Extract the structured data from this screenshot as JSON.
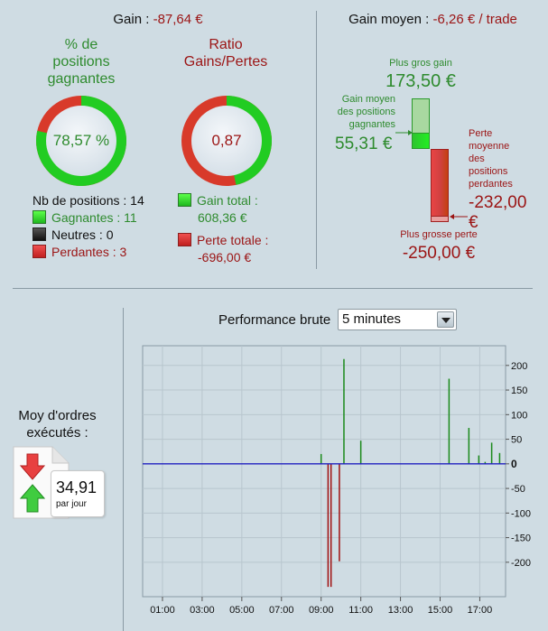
{
  "gain": {
    "label": "Gain :",
    "value": "-87,64 €"
  },
  "gain_moyen": {
    "label": "Gain moyen :",
    "value": "-6,26 € / trade"
  },
  "donut_positions": {
    "title_lines": [
      "% de",
      "positions",
      "gagnantes"
    ],
    "value_text": "78,57 %",
    "fraction": 0.7857,
    "color_good": "#22cc22",
    "color_bad": "#d83a2a"
  },
  "donut_ratio": {
    "title_lines": [
      "Ratio",
      "Gains/Pertes"
    ],
    "value_text": "0,87",
    "fraction": 0.4664,
    "color_good": "#22cc22",
    "color_bad": "#d83a2a"
  },
  "positions_legend": {
    "nb_label": "Nb de positions : 14",
    "gagnantes": "Gagnantes : 11",
    "neutres": "Neutres : 0",
    "perdantes": "Perdantes : 3"
  },
  "totals_legend": {
    "gain_total_label": "Gain total :",
    "gain_total_value": "608,36 €",
    "perte_totale_label": "Perte totale :",
    "perte_totale_value": "-696,00 €"
  },
  "gain_moyen_chart": {
    "plus_gros_gain_label": "Plus gros gain",
    "plus_gros_gain_value": "173,50 €",
    "gain_moyen_lines": [
      "Gain moyen",
      "des positions",
      "gagnantes"
    ],
    "gain_moyen_value": "55,31 €",
    "perte_moyenne_lines": [
      "Perte",
      "moyenne",
      "des",
      "positions",
      "perdantes"
    ],
    "perte_moyenne_value": "-232,00 €",
    "plus_grosse_perte_label": "Plus grosse perte",
    "plus_grosse_perte_value": "-250,00 €",
    "max_gain": 173.5,
    "avg_gain": 55.31,
    "avg_loss": -232.0,
    "max_loss": -250.0
  },
  "orders": {
    "title_lines": [
      "Moy d'ordres",
      "exécutés :"
    ],
    "value": "34,91",
    "unit": "par jour",
    "icons": [
      "arrow-down-red-icon",
      "arrow-up-green-icon"
    ]
  },
  "performance": {
    "label": "Performance brute",
    "select_value": "5 minutes"
  },
  "chart_data": {
    "type": "bar",
    "title": "Performance brute",
    "xlabel": "",
    "ylabel": "",
    "xlim_hours": [
      0,
      18.3
    ],
    "ylim": [
      -270,
      240
    ],
    "x_ticks": [
      "01:00",
      "03:00",
      "05:00",
      "07:00",
      "09:00",
      "11:00",
      "13:00",
      "15:00",
      "17:00"
    ],
    "x_tick_hours": [
      1,
      3,
      5,
      7,
      9,
      11,
      13,
      15,
      17
    ],
    "y_ticks": [
      "200",
      "150",
      "100",
      "50",
      "0",
      "-50",
      "-100",
      "-150",
      "-200"
    ],
    "y_tick_values": [
      200,
      150,
      100,
      50,
      0,
      -50,
      -100,
      -150,
      -200
    ],
    "grid": true,
    "positive_color": "#1a8a1a",
    "negative_color": "#a01010",
    "zero_line_color": "#2020c0",
    "points": [
      {
        "hour": 9.0,
        "value": 20
      },
      {
        "hour": 9.35,
        "value": -250
      },
      {
        "hour": 9.5,
        "value": -250
      },
      {
        "hour": 9.92,
        "value": -198
      },
      {
        "hour": 10.15,
        "value": 213
      },
      {
        "hour": 11.0,
        "value": 47
      },
      {
        "hour": 15.45,
        "value": 173
      },
      {
        "hour": 16.45,
        "value": 73
      },
      {
        "hour": 16.95,
        "value": 17
      },
      {
        "hour": 17.27,
        "value": 4
      },
      {
        "hour": 17.6,
        "value": 43
      },
      {
        "hour": 18.0,
        "value": 22
      }
    ]
  }
}
